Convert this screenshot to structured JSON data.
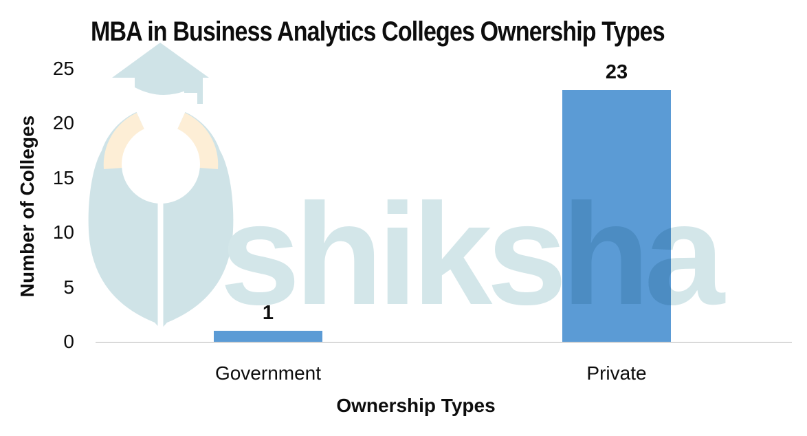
{
  "chart_data": {
    "type": "bar",
    "title": "MBA in Business Analytics Colleges Ownership Types",
    "categories": [
      "Government",
      "Private"
    ],
    "values": [
      1,
      23
    ],
    "xlabel": "Ownership Types",
    "ylabel": "Number of Colleges",
    "ylim": [
      0,
      25
    ],
    "yticks": [
      0,
      5,
      10,
      15,
      20,
      25
    ],
    "grid": false,
    "legend": false,
    "bar_color": "#5B9BD5"
  },
  "watermark": {
    "text": "shiksha",
    "logo": "shiksha-graduation-cap-pen-logo",
    "text_color": "#d3e6e9",
    "logo_teal": "#cfe3e7",
    "logo_peach": "#fdeed6"
  },
  "colors": {
    "background": "#ffffff",
    "axis_line": "#d9d9d9",
    "text": "#0d0d0d"
  }
}
